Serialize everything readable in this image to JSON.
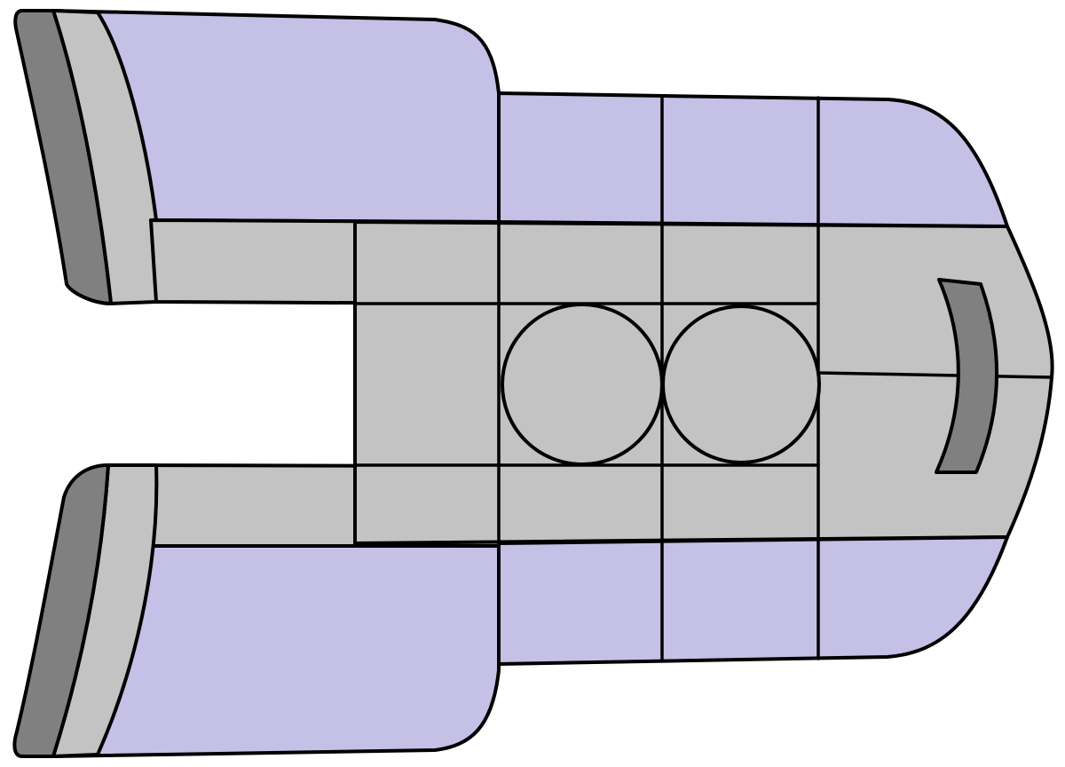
{
  "colors": {
    "lavender": "#c5c0e6",
    "light_gray": "#c3c3c3",
    "dark_gray": "#808080",
    "outline": "#000000",
    "background": "#ffffff"
  },
  "parts": [
    "upper-arm",
    "lower-arm",
    "upper-thruster",
    "lower-thruster",
    "central-hull",
    "twin-pods",
    "nose-vent"
  ]
}
